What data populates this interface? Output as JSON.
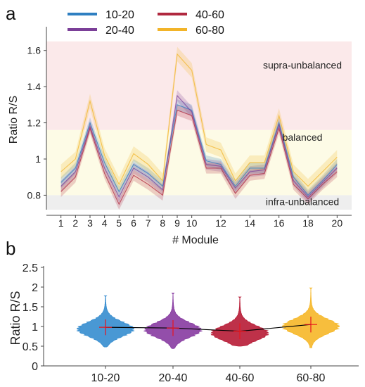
{
  "figure": {
    "panel_a_label": "a",
    "panel_b_label": "b"
  },
  "chart_data": [
    {
      "type": "line",
      "panel": "a",
      "title": "",
      "xlabel": "# Module",
      "ylabel": "Ratio R/S",
      "xlim": [
        0,
        21
      ],
      "ylim": [
        0.72,
        1.7
      ],
      "x": [
        1,
        2,
        3,
        4,
        5,
        6,
        7,
        8,
        9,
        10,
        11,
        12,
        13,
        14,
        15,
        16,
        17,
        18,
        19,
        20
      ],
      "x_ticks": [
        1,
        2,
        3,
        4,
        5,
        6,
        7,
        8,
        9,
        10,
        12,
        14,
        16,
        18,
        20
      ],
      "y_ticks": [
        0.8,
        1,
        1.2,
        1.4,
        1.6
      ],
      "y_tick_labels": [
        "0.8",
        "1",
        "1.2",
        "1.4",
        "1.6"
      ],
      "grid": false,
      "legend_position": "top-left",
      "regions": [
        {
          "label": "supra-unbalanced",
          "from": 1.16,
          "to": 1.65,
          "color": "#fbe9ea"
        },
        {
          "label": "balanced",
          "from": 0.8,
          "to": 1.16,
          "color": "#fdfbe6"
        },
        {
          "label": "infra-unbalanced",
          "from": 0.72,
          "to": 0.8,
          "color": "#eeeeee"
        }
      ],
      "series": [
        {
          "name": "10-20",
          "color": "#2f7fc1",
          "band": 0.03,
          "values": [
            0.87,
            0.95,
            1.2,
            0.98,
            0.82,
            0.97,
            0.92,
            0.85,
            1.3,
            1.27,
            0.99,
            0.97,
            0.85,
            0.95,
            0.95,
            1.2,
            0.9,
            0.8,
            0.88,
            0.97
          ]
        },
        {
          "name": "20-40",
          "color": "#7b3f98",
          "band": 0.03,
          "values": [
            0.85,
            0.93,
            1.18,
            0.95,
            0.79,
            0.95,
            0.9,
            0.83,
            1.35,
            1.26,
            0.97,
            0.96,
            0.84,
            0.93,
            0.94,
            1.19,
            0.88,
            0.79,
            0.87,
            0.95
          ]
        },
        {
          "name": "40-60",
          "color": "#b0283f",
          "band": 0.03,
          "values": [
            0.82,
            0.9,
            1.17,
            0.92,
            0.75,
            0.91,
            0.86,
            0.8,
            1.27,
            1.24,
            0.95,
            0.95,
            0.81,
            0.91,
            0.92,
            1.17,
            0.86,
            0.78,
            0.86,
            0.93
          ]
        },
        {
          "name": "60-80",
          "color": "#f2b429",
          "band": 0.04,
          "values": [
            0.93,
            1.0,
            1.32,
            1.02,
            0.86,
            1.03,
            0.97,
            0.88,
            1.58,
            1.49,
            1.08,
            1.05,
            0.88,
            0.98,
            0.98,
            1.24,
            0.93,
            0.85,
            0.93,
            1.01
          ]
        }
      ]
    },
    {
      "type": "violin",
      "panel": "b",
      "title": "",
      "xlabel": "",
      "ylabel": "Ratio R/S",
      "ylim": [
        0,
        2.5
      ],
      "y_ticks": [
        0,
        0.5,
        1,
        1.5,
        2,
        2.5
      ],
      "y_tick_labels": [
        "0",
        "0.5",
        "1",
        "1.5",
        "2",
        "2.5"
      ],
      "categories": [
        "10-20",
        "20-40",
        "40-60",
        "60-80"
      ],
      "colors": [
        "#3a8fd0",
        "#8a3fa3",
        "#b8203a",
        "#f6b92c"
      ],
      "means": [
        0.98,
        0.96,
        0.88,
        1.05
      ],
      "mean_error": [
        0.2,
        0.2,
        0.2,
        0.2
      ],
      "min": [
        0.48,
        0.44,
        0.5,
        0.46
      ],
      "max": [
        1.78,
        1.85,
        1.75,
        1.98
      ],
      "mean_line_color": "#000000",
      "marker_color": "#e8141d"
    }
  ]
}
